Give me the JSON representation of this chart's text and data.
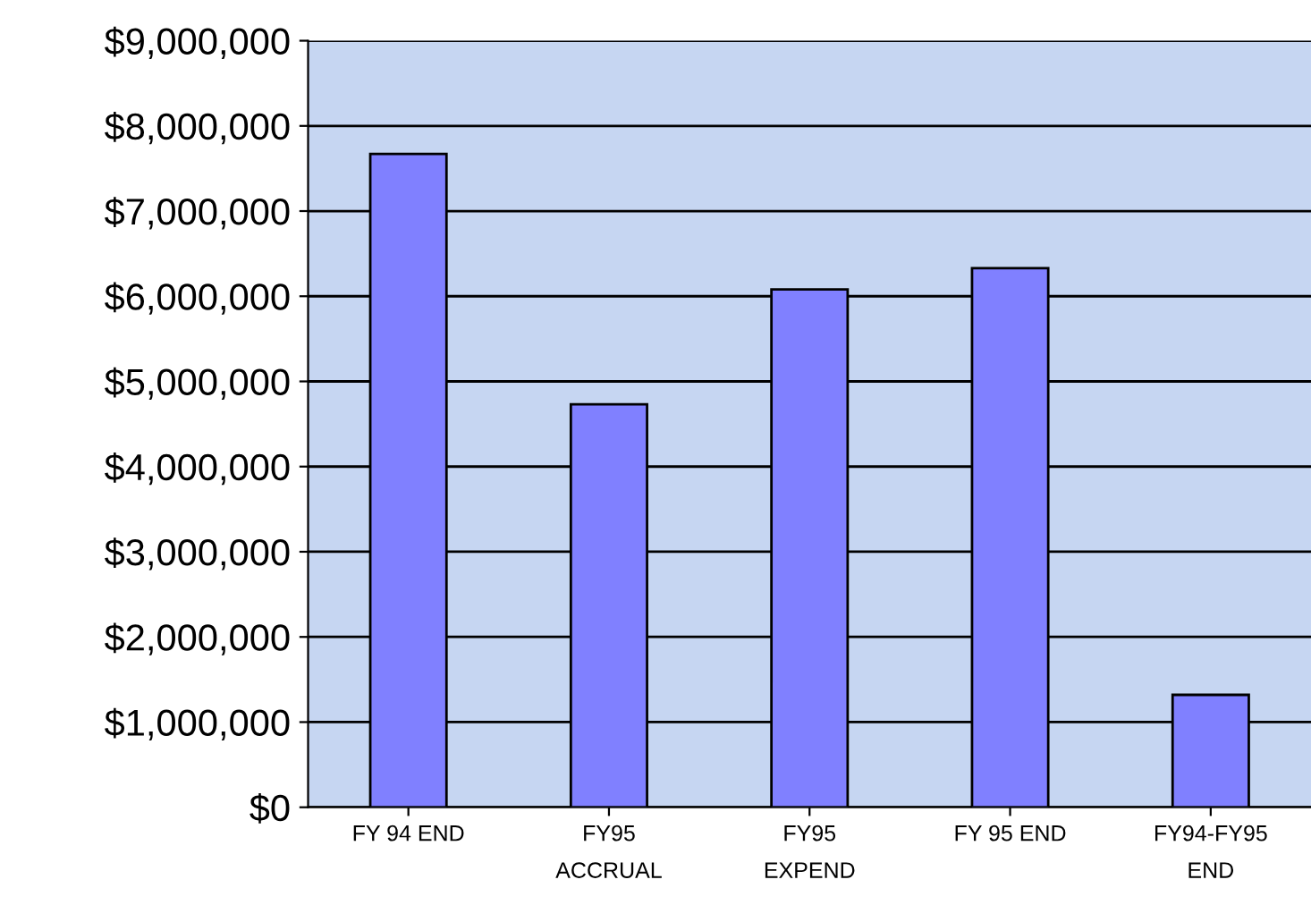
{
  "chart_data": {
    "type": "bar",
    "categories": [
      "FY 94 END",
      "FY95\nACCRUAL",
      "FY95\nEXPEND",
      "FY 95 END",
      "FY94-FY95\nEND"
    ],
    "values": [
      7670000,
      4730000,
      6080000,
      6330000,
      1320000
    ],
    "color": "#8080ff",
    "ylim": [
      0,
      9000000
    ],
    "yticks": [
      {
        "value": 0,
        "label": "$0"
      },
      {
        "value": 1000000,
        "label": "$1,000,000"
      },
      {
        "value": 2000000,
        "label": "$2,000,000"
      },
      {
        "value": 3000000,
        "label": "$3,000,000"
      },
      {
        "value": 4000000,
        "label": "$4,000,000"
      },
      {
        "value": 5000000,
        "label": "$5,000,000"
      },
      {
        "value": 6000000,
        "label": "$6,000,000"
      },
      {
        "value": 7000000,
        "label": "$7,000,000"
      },
      {
        "value": 8000000,
        "label": "$8,000,000"
      },
      {
        "value": 9000000,
        "label": "$9,000,000"
      }
    ],
    "grid": "y"
  }
}
